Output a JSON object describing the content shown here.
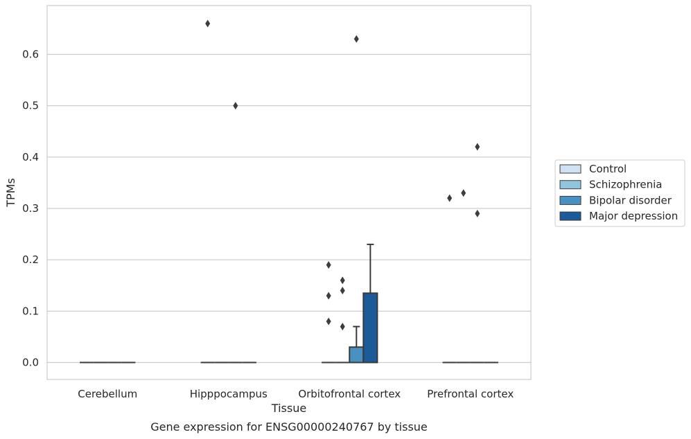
{
  "chart_data": {
    "type": "box",
    "title": "",
    "caption": "Gene expression for ENSG00000240767 by tissue",
    "xlabel": "Tissue",
    "ylabel": "TPMs",
    "ylim": [
      -0.033,
      0.695
    ],
    "yticks": [
      0.0,
      0.1,
      0.2,
      0.3,
      0.4,
      0.5,
      0.6
    ],
    "ytick_labels": [
      "0.0",
      "0.1",
      "0.2",
      "0.3",
      "0.4",
      "0.5",
      "0.6"
    ],
    "grid": "horizontal",
    "legend_position": "right",
    "categories": [
      "Cerebellum",
      "Hipppocampus",
      "Orbitofrontal cortex",
      "Prefrontal cortex"
    ],
    "series": [
      {
        "name": "Control",
        "color": "#cfe1f2",
        "boxes": [
          {
            "q1": 0,
            "median": 0,
            "q3": 0,
            "whislo": 0,
            "whishi": 0,
            "fliers": []
          },
          {
            "q1": 0,
            "median": 0,
            "q3": 0,
            "whislo": 0,
            "whishi": 0,
            "fliers": [
              0.66
            ]
          },
          {
            "q1": 0,
            "median": 0,
            "q3": 0,
            "whislo": 0,
            "whishi": 0,
            "fliers": [
              0.19,
              0.13,
              0.08
            ]
          },
          {
            "q1": 0,
            "median": 0,
            "q3": 0,
            "whislo": 0,
            "whishi": 0,
            "fliers": [
              0.32
            ]
          }
        ]
      },
      {
        "name": "Schizophrenia",
        "color": "#93c4de",
        "boxes": [
          {
            "q1": 0,
            "median": 0,
            "q3": 0,
            "whislo": 0,
            "whishi": 0,
            "fliers": []
          },
          {
            "q1": 0,
            "median": 0,
            "q3": 0,
            "whislo": 0,
            "whishi": 0,
            "fliers": []
          },
          {
            "q1": 0,
            "median": 0,
            "q3": 0,
            "whislo": 0,
            "whishi": 0,
            "fliers": [
              0.16,
              0.14,
              0.07
            ]
          },
          {
            "q1": 0,
            "median": 0,
            "q3": 0,
            "whislo": 0,
            "whishi": 0,
            "fliers": [
              0.33
            ]
          }
        ]
      },
      {
        "name": "Bipolar disorder",
        "color": "#4a91c2",
        "boxes": [
          {
            "q1": 0,
            "median": 0,
            "q3": 0,
            "whislo": 0,
            "whishi": 0,
            "fliers": []
          },
          {
            "q1": 0,
            "median": 0,
            "q3": 0,
            "whislo": 0,
            "whishi": 0,
            "fliers": [
              0.5
            ]
          },
          {
            "q1": 0,
            "median": 0,
            "q3": 0.03,
            "whislo": 0,
            "whishi": 0.07,
            "fliers": [
              0.63
            ]
          },
          {
            "q1": 0,
            "median": 0,
            "q3": 0,
            "whislo": 0,
            "whishi": 0,
            "fliers": [
              0.42,
              0.29
            ]
          }
        ]
      },
      {
        "name": "Major depression",
        "color": "#1c5a99",
        "boxes": [
          {
            "q1": 0,
            "median": 0,
            "q3": 0,
            "whislo": 0,
            "whishi": 0,
            "fliers": []
          },
          {
            "q1": 0,
            "median": 0,
            "q3": 0,
            "whislo": 0,
            "whishi": 0,
            "fliers": []
          },
          {
            "q1": 0,
            "median": 0,
            "q3": 0.135,
            "whislo": 0,
            "whishi": 0.23,
            "fliers": []
          },
          {
            "q1": 0,
            "median": 0,
            "q3": 0,
            "whislo": 0,
            "whishi": 0,
            "fliers": []
          }
        ]
      }
    ]
  }
}
